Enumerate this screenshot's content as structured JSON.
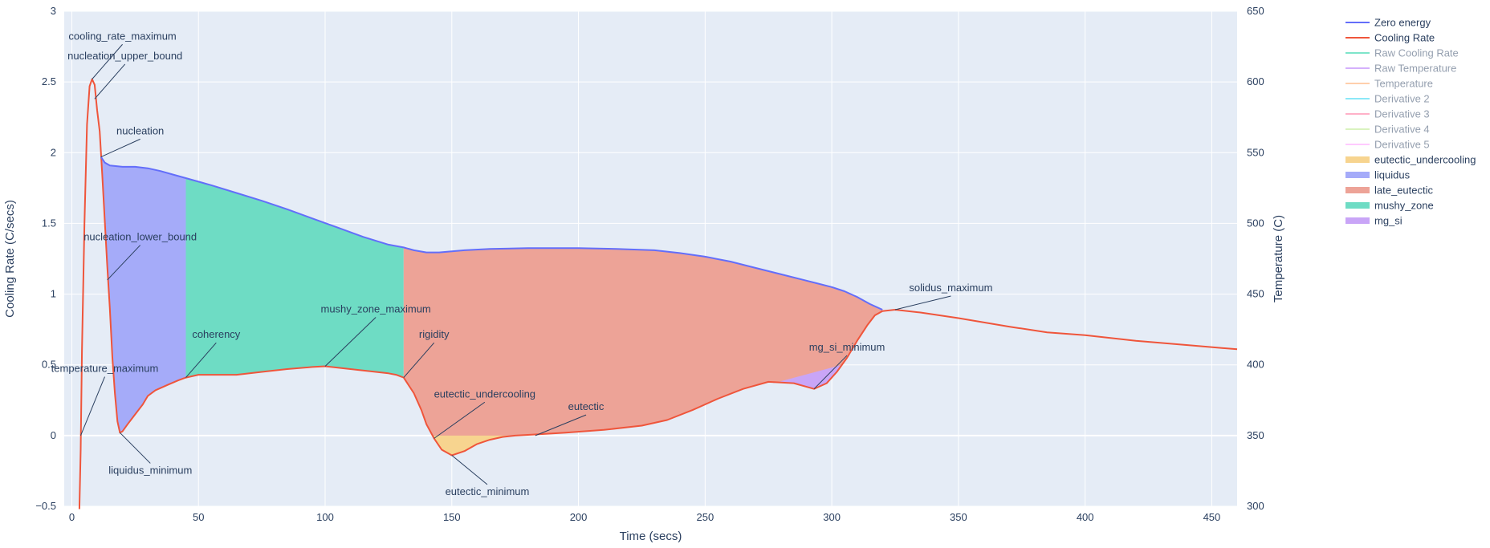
{
  "chart_data": {
    "type": "line",
    "xlabel": "Time (secs)",
    "ylabel": "Cooling Rate (C/secs)",
    "y2label": "Temperature (C)",
    "xlim": [
      -3,
      460
    ],
    "ylim": [
      -0.5,
      3
    ],
    "y2lim": [
      300,
      650
    ],
    "grid": true,
    "legend_position": "right",
    "x_ticks": [
      0,
      50,
      100,
      150,
      200,
      250,
      300,
      350,
      400,
      450
    ],
    "y_ticks": [
      -0.5,
      0,
      0.5,
      1,
      1.5,
      2,
      2.5,
      3
    ],
    "y_tick_labels": [
      "−0.5",
      "0",
      "0.5",
      "1",
      "1.5",
      "2",
      "2.5",
      "3"
    ],
    "y2_ticks": [
      300,
      350,
      400,
      450,
      500,
      550,
      600,
      650
    ],
    "legend": [
      {
        "name": "Zero energy",
        "color": "#636efa",
        "dim": false,
        "kind": "line"
      },
      {
        "name": "Cooling Rate",
        "color": "#ef553b",
        "dim": false,
        "kind": "line"
      },
      {
        "name": "Raw Cooling Rate",
        "color": "#00cc96",
        "dim": true,
        "kind": "line"
      },
      {
        "name": "Raw Temperature",
        "color": "#ab63fa",
        "dim": true,
        "kind": "line"
      },
      {
        "name": "Temperature",
        "color": "#ffa15a",
        "dim": true,
        "kind": "line"
      },
      {
        "name": "Derivative 2",
        "color": "#19d3f3",
        "dim": true,
        "kind": "line"
      },
      {
        "name": "Derivative 3",
        "color": "#ff6692",
        "dim": true,
        "kind": "line"
      },
      {
        "name": "Derivative 4",
        "color": "#b6e880",
        "dim": true,
        "kind": "line"
      },
      {
        "name": "Derivative 5",
        "color": "#ff97ff",
        "dim": true,
        "kind": "line"
      },
      {
        "name": "eutectic_undercooling",
        "color": "#f7d48f",
        "dim": false,
        "kind": "fill"
      },
      {
        "name": "liquidus",
        "color": "#a5abf9",
        "dim": false,
        "kind": "fill"
      },
      {
        "name": "late_eutectic",
        "color": "#eda397",
        "dim": false,
        "kind": "fill"
      },
      {
        "name": "mushy_zone",
        "color": "#6edcc4",
        "dim": false,
        "kind": "fill"
      },
      {
        "name": "mg_si",
        "color": "#c9a5f7",
        "dim": false,
        "kind": "fill"
      }
    ],
    "series": [
      {
        "name": "Cooling Rate",
        "color": "#ef553b",
        "points": [
          [
            3,
            -0.52
          ],
          [
            3.5,
            -0.1
          ],
          [
            4,
            0.6
          ],
          [
            5,
            1.5
          ],
          [
            6,
            2.2
          ],
          [
            7,
            2.47
          ],
          [
            8,
            2.52
          ],
          [
            9,
            2.48
          ],
          [
            10,
            2.3
          ],
          [
            11,
            2.15
          ],
          [
            12,
            1.85
          ],
          [
            14,
            1.2
          ],
          [
            15,
            0.9
          ],
          [
            16,
            0.55
          ],
          [
            17,
            0.3
          ],
          [
            18,
            0.1
          ],
          [
            19,
            0.02
          ],
          [
            20,
            0.03
          ],
          [
            22,
            0.08
          ],
          [
            25,
            0.15
          ],
          [
            28,
            0.22
          ],
          [
            30,
            0.28
          ],
          [
            33,
            0.32
          ],
          [
            38,
            0.36
          ],
          [
            42,
            0.39
          ],
          [
            45,
            0.41
          ],
          [
            50,
            0.43
          ],
          [
            60,
            0.43
          ],
          [
            65,
            0.43
          ],
          [
            75,
            0.45
          ],
          [
            85,
            0.47
          ],
          [
            95,
            0.485
          ],
          [
            100,
            0.49
          ],
          [
            105,
            0.48
          ],
          [
            115,
            0.46
          ],
          [
            125,
            0.44
          ],
          [
            128,
            0.43
          ],
          [
            131,
            0.41
          ],
          [
            135,
            0.3
          ],
          [
            138,
            0.18
          ],
          [
            140,
            0.08
          ],
          [
            143,
            -0.02
          ],
          [
            146,
            -0.1
          ],
          [
            150,
            -0.14
          ],
          [
            155,
            -0.11
          ],
          [
            160,
            -0.06
          ],
          [
            165,
            -0.03
          ],
          [
            170,
            -0.01
          ],
          [
            175,
            0.0
          ],
          [
            185,
            0.01
          ],
          [
            195,
            0.02
          ],
          [
            210,
            0.04
          ],
          [
            225,
            0.07
          ],
          [
            235,
            0.11
          ],
          [
            245,
            0.18
          ],
          [
            255,
            0.26
          ],
          [
            265,
            0.33
          ],
          [
            275,
            0.38
          ],
          [
            285,
            0.37
          ],
          [
            293,
            0.33
          ],
          [
            298,
            0.37
          ],
          [
            302,
            0.45
          ],
          [
            306,
            0.55
          ],
          [
            310,
            0.67
          ],
          [
            314,
            0.78
          ],
          [
            317,
            0.85
          ],
          [
            320,
            0.88
          ],
          [
            325,
            0.89
          ],
          [
            335,
            0.87
          ],
          [
            350,
            0.83
          ],
          [
            370,
            0.77
          ],
          [
            385,
            0.73
          ],
          [
            400,
            0.71
          ],
          [
            420,
            0.67
          ],
          [
            440,
            0.64
          ],
          [
            460,
            0.61
          ]
        ]
      },
      {
        "name": "Zero energy",
        "color": "#636efa",
        "points": [
          [
            11.5,
            1.97
          ],
          [
            13,
            1.93
          ],
          [
            15,
            1.91
          ],
          [
            20,
            1.9
          ],
          [
            25,
            1.9
          ],
          [
            30,
            1.89
          ],
          [
            35,
            1.87
          ],
          [
            40,
            1.845
          ],
          [
            45,
            1.82
          ],
          [
            55,
            1.77
          ],
          [
            65,
            1.715
          ],
          [
            75,
            1.66
          ],
          [
            85,
            1.6
          ],
          [
            95,
            1.535
          ],
          [
            105,
            1.47
          ],
          [
            115,
            1.405
          ],
          [
            125,
            1.35
          ],
          [
            131,
            1.33
          ],
          [
            135,
            1.31
          ],
          [
            140,
            1.295
          ],
          [
            145,
            1.295
          ],
          [
            155,
            1.31
          ],
          [
            165,
            1.32
          ],
          [
            180,
            1.325
          ],
          [
            200,
            1.325
          ],
          [
            215,
            1.32
          ],
          [
            230,
            1.31
          ],
          [
            240,
            1.29
          ],
          [
            250,
            1.265
          ],
          [
            260,
            1.23
          ],
          [
            270,
            1.185
          ],
          [
            280,
            1.14
          ],
          [
            290,
            1.095
          ],
          [
            300,
            1.05
          ],
          [
            305,
            1.02
          ],
          [
            310,
            0.98
          ],
          [
            315,
            0.93
          ],
          [
            320,
            0.89
          ]
        ]
      }
    ],
    "regions": [
      {
        "name": "liquidus",
        "color": "#a5abf9",
        "x_from": 11.5,
        "x_to": 45
      },
      {
        "name": "mushy_zone",
        "color": "#6edcc4",
        "x_from": 45,
        "x_to": 131
      },
      {
        "name": "late_eutectic",
        "color": "#eda397",
        "x_from": 131,
        "x_to": 320
      },
      {
        "name": "eutectic_undercooling",
        "color": "#f7d48f",
        "x_from": 143,
        "x_to": 176,
        "base_y": 0
      },
      {
        "name": "mg_si",
        "color": "#c9a5f7",
        "x_from": 277,
        "x_to": 304,
        "base_line": [
          [
            277,
            0.37
          ],
          [
            304,
            0.5
          ]
        ]
      }
    ],
    "annotations": [
      {
        "text": "cooling_rate_maximum",
        "x": 8,
        "y": 2.52,
        "label_x": 20,
        "label_y": 2.8,
        "anchor": "middle"
      },
      {
        "text": "nucleation_upper_bound",
        "x": 9,
        "y": 2.38,
        "label_x": 21,
        "label_y": 2.66,
        "anchor": "middle"
      },
      {
        "text": "nucleation",
        "x": 11.5,
        "y": 1.97,
        "label_x": 27,
        "label_y": 2.13,
        "anchor": "middle"
      },
      {
        "text": "nucleation_lower_bound",
        "x": 14,
        "y": 1.1,
        "label_x": 27,
        "label_y": 1.38,
        "anchor": "middle"
      },
      {
        "text": "temperature_maximum",
        "x": 3.5,
        "y": 0.0,
        "label_x": 13,
        "label_y": 0.45,
        "anchor": "middle"
      },
      {
        "text": "liquidus_minimum",
        "x": 19,
        "y": 0.02,
        "label_x": 31,
        "label_y": -0.27,
        "anchor": "middle"
      },
      {
        "text": "coherency",
        "x": 45,
        "y": 0.41,
        "label_x": 57,
        "label_y": 0.69,
        "anchor": "middle"
      },
      {
        "text": "mushy_zone_maximum",
        "x": 100,
        "y": 0.49,
        "label_x": 120,
        "label_y": 0.87,
        "anchor": "middle"
      },
      {
        "text": "rigidity",
        "x": 131,
        "y": 0.41,
        "label_x": 143,
        "label_y": 0.69,
        "anchor": "middle"
      },
      {
        "text": "eutectic_undercooling",
        "x": 143,
        "y": -0.02,
        "label_x": 163,
        "label_y": 0.27,
        "anchor": "middle"
      },
      {
        "text": "eutectic",
        "x": 183,
        "y": 0.0,
        "label_x": 203,
        "label_y": 0.18,
        "anchor": "middle"
      },
      {
        "text": "eutectic_minimum",
        "x": 150,
        "y": -0.14,
        "label_x": 164,
        "label_y": -0.42,
        "anchor": "middle"
      },
      {
        "text": "mg_si_minimum",
        "x": 293,
        "y": 0.33,
        "label_x": 306,
        "label_y": 0.6,
        "anchor": "middle"
      },
      {
        "text": "solidus_maximum",
        "x": 325,
        "y": 0.89,
        "label_x": 347,
        "label_y": 1.02,
        "anchor": "middle"
      }
    ]
  }
}
